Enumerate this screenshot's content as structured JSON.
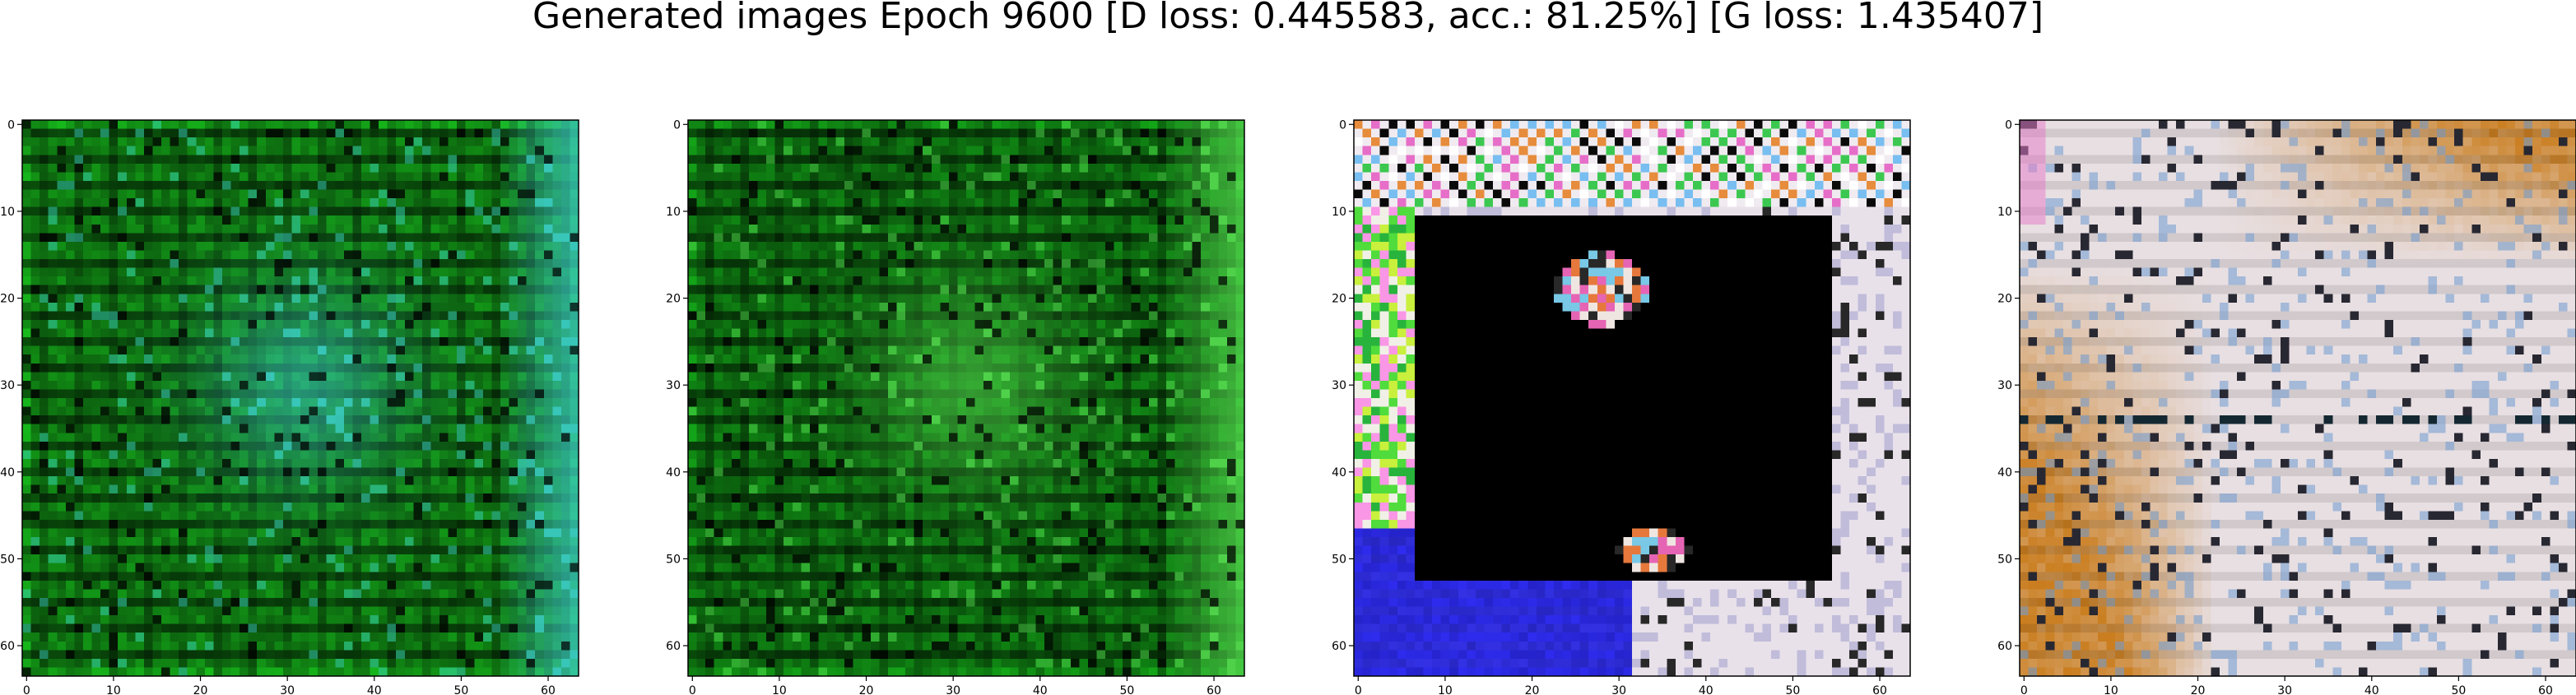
{
  "title": "Generated images Epoch 9600 [D loss: 0.445583, acc.: 81.25%] [G loss: 1.435407]",
  "chart_data": [
    {
      "type": "heatmap",
      "content": "image",
      "pattern": "green-grid",
      "base_color": "#0f7a12",
      "accent_color": "#38c6b8",
      "x_ticks": [
        "0",
        "10",
        "20",
        "30",
        "40",
        "50",
        "60"
      ],
      "y_ticks": [
        "0",
        "10",
        "20",
        "30",
        "40",
        "50",
        "60"
      ],
      "xlim": [
        -0.5,
        63.5
      ],
      "ylim": [
        63.5,
        -0.5
      ],
      "grid": false
    },
    {
      "type": "heatmap",
      "content": "image",
      "pattern": "green-grid",
      "base_color": "#0d6e10",
      "accent_color": "#4fd24a",
      "x_ticks": [
        "0",
        "10",
        "20",
        "30",
        "40",
        "50",
        "60"
      ],
      "y_ticks": [
        "0",
        "10",
        "20",
        "30",
        "40",
        "50",
        "60"
      ],
      "xlim": [
        -0.5,
        63.5
      ],
      "ylim": [
        63.5,
        -0.5
      ],
      "grid": false
    },
    {
      "type": "heatmap",
      "content": "image",
      "pattern": "dark-frame",
      "base_color": "#000000",
      "frame_color": "#e9e1ea",
      "blue_color": "#2f2cf0",
      "x_ticks": [
        "0",
        "10",
        "20",
        "30",
        "40",
        "50",
        "60"
      ],
      "y_ticks": [
        "0",
        "10",
        "20",
        "30",
        "40",
        "50",
        "60"
      ],
      "xlim": [
        -0.5,
        63.5
      ],
      "ylim": [
        63.5,
        -0.5
      ],
      "grid": false
    },
    {
      "type": "heatmap",
      "content": "image",
      "pattern": "pale-orange",
      "base_color": "#e8dfe2",
      "accent_color": "#c97a18",
      "x_ticks": [
        "0",
        "10",
        "20",
        "30",
        "40",
        "50",
        "60"
      ],
      "y_ticks": [
        "0",
        "10",
        "20",
        "30",
        "40",
        "50",
        "60"
      ],
      "xlim": [
        -0.5,
        63.5
      ],
      "ylim": [
        63.5,
        -0.5
      ],
      "grid": false
    }
  ]
}
